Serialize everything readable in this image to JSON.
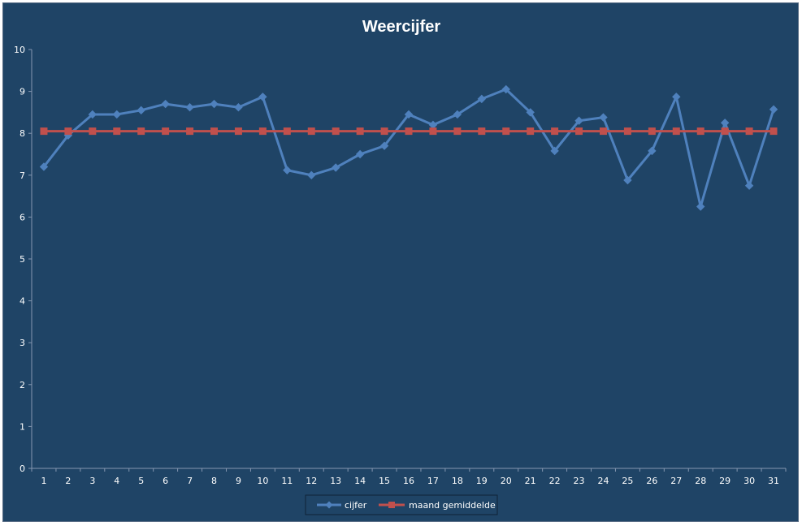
{
  "chart_data": {
    "type": "line",
    "title": "Weercijfer",
    "xlabel": "",
    "ylabel": "",
    "categories": [
      "1",
      "2",
      "3",
      "4",
      "5",
      "6",
      "7",
      "8",
      "9",
      "10",
      "11",
      "12",
      "13",
      "14",
      "15",
      "16",
      "17",
      "18",
      "19",
      "20",
      "21",
      "22",
      "23",
      "24",
      "25",
      "26",
      "27",
      "28",
      "29",
      "30",
      "31"
    ],
    "ylim": [
      0,
      10
    ],
    "yticks": [
      "0",
      "1",
      "2",
      "3",
      "4",
      "5",
      "6",
      "7",
      "8",
      "9",
      "10"
    ],
    "grid": false,
    "legend_position": "bottom",
    "series": [
      {
        "name": "cijfer",
        "color": "#4f81bd",
        "marker": "diamond",
        "values": [
          7.2,
          7.95,
          8.45,
          8.45,
          8.55,
          8.7,
          8.62,
          8.7,
          8.62,
          8.87,
          7.12,
          7.0,
          7.18,
          7.5,
          7.7,
          8.45,
          8.2,
          8.45,
          8.82,
          9.05,
          8.5,
          7.58,
          8.3,
          8.38,
          6.88,
          7.58,
          8.87,
          6.25,
          8.25,
          6.75,
          8.57
        ]
      },
      {
        "name": "maand gemiddelde",
        "color": "#c0504d",
        "marker": "square",
        "values": [
          8.05,
          8.05,
          8.05,
          8.05,
          8.05,
          8.05,
          8.05,
          8.05,
          8.05,
          8.05,
          8.05,
          8.05,
          8.05,
          8.05,
          8.05,
          8.05,
          8.05,
          8.05,
          8.05,
          8.05,
          8.05,
          8.05,
          8.05,
          8.05,
          8.05,
          8.05,
          8.05,
          8.05,
          8.05,
          8.05,
          8.05
        ]
      }
    ]
  },
  "colors": {
    "background": "#1f4466",
    "axis": "#8496b0",
    "text": "#ffffff"
  }
}
